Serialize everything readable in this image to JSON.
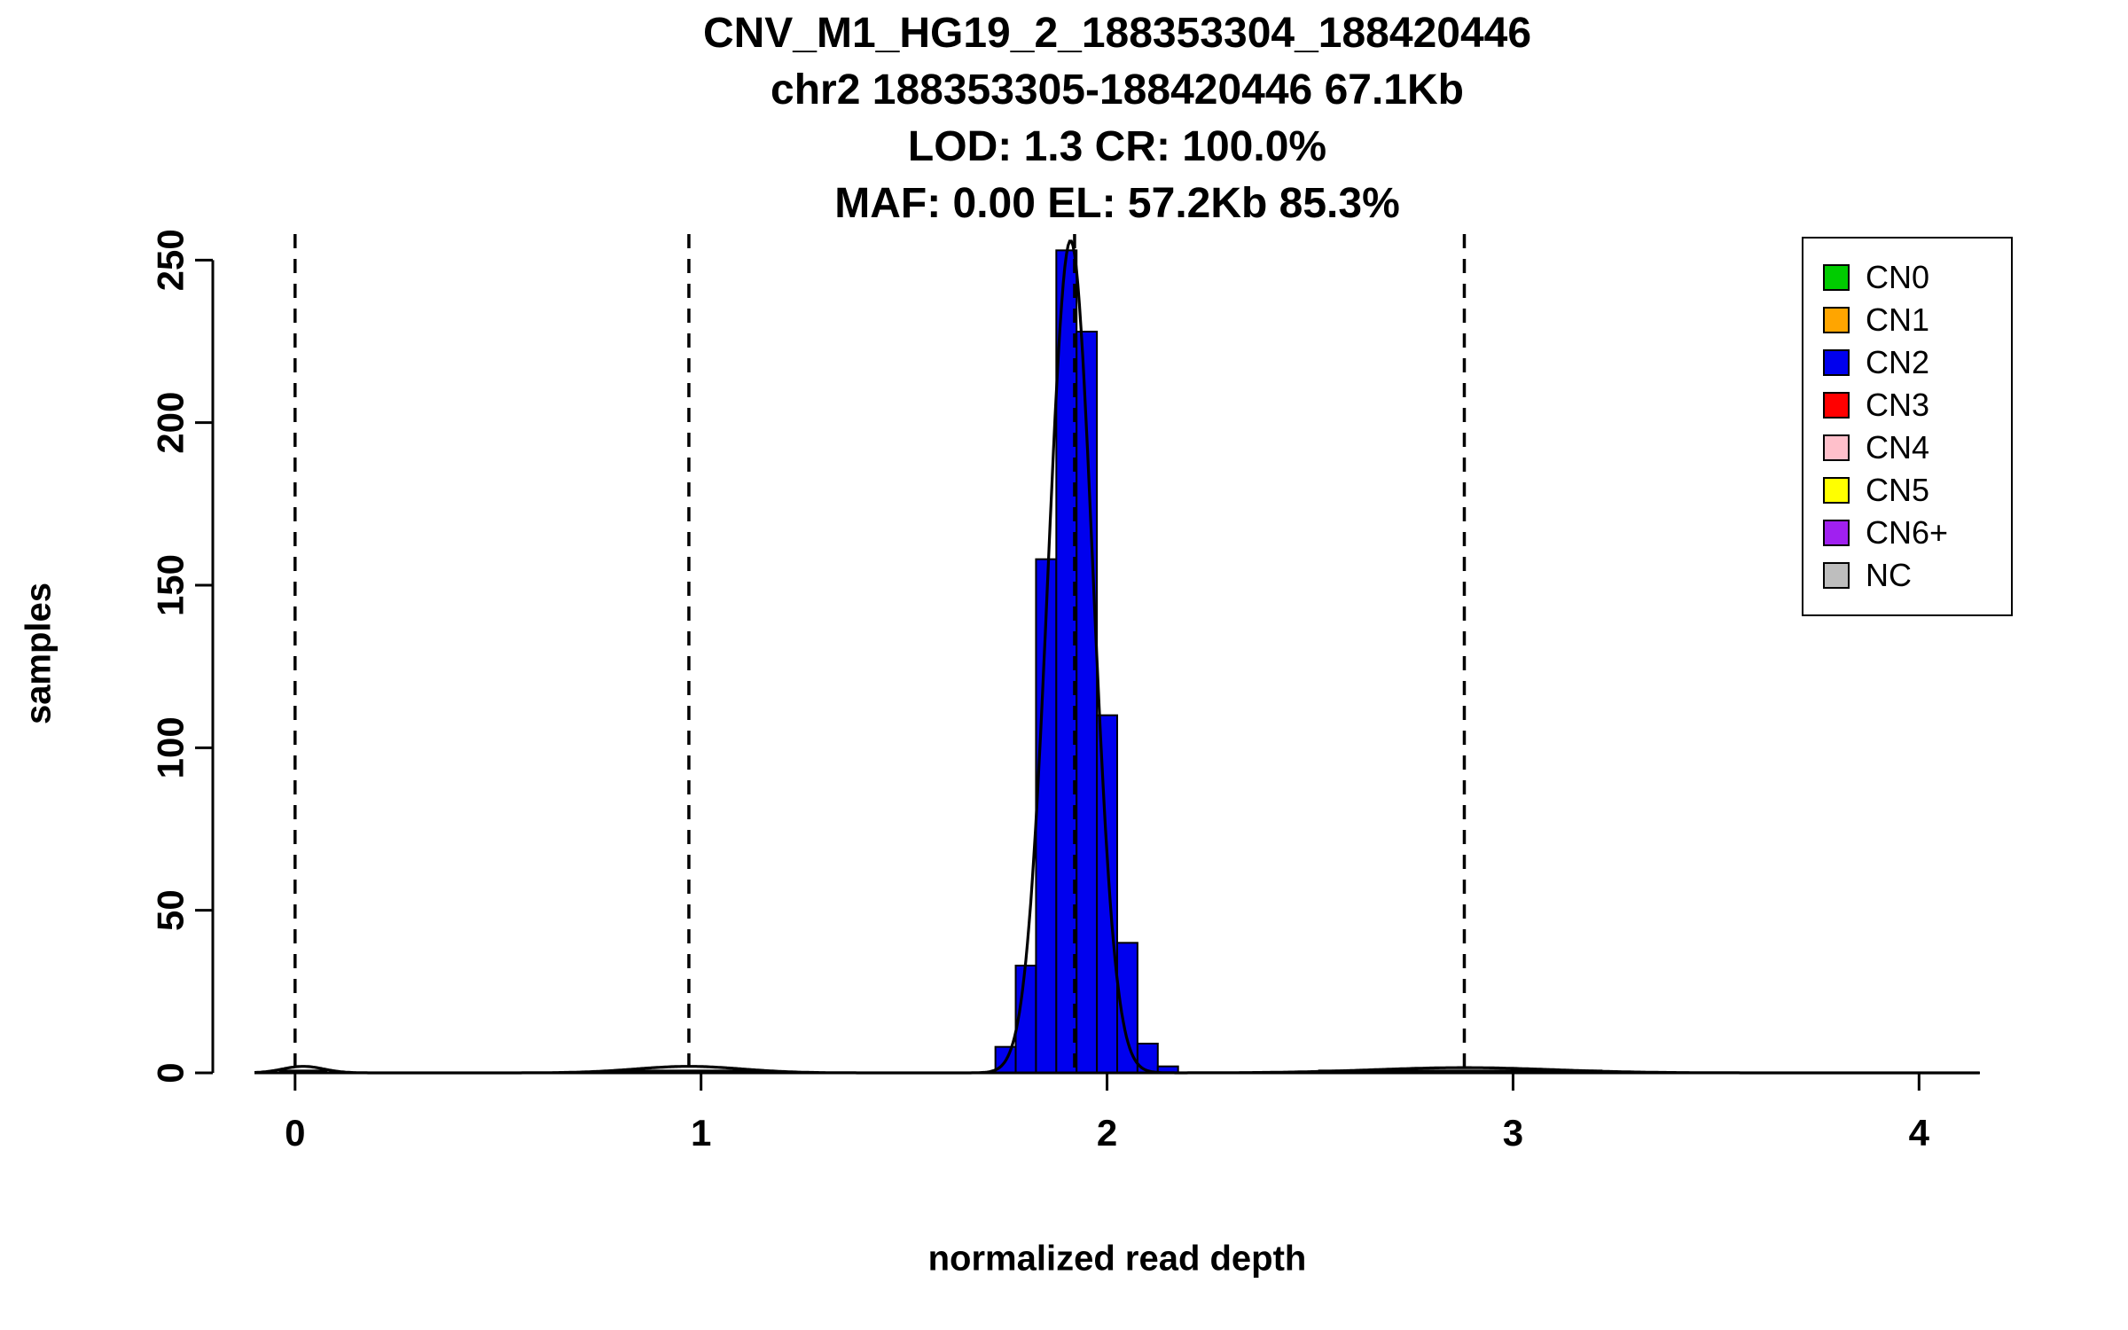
{
  "figure": {
    "background": "#FFFFFF"
  },
  "chart_data": {
    "type": "bar",
    "subtype": "histogram_with_density_curve",
    "title_lines": [
      "CNV_M1_HG19_2_188353304_188420446",
      "chr2 188353305-188420446 67.1Kb",
      "LOD: 1.3 CR: 100.0%",
      "MAF: 0.00 EL: 57.2Kb 85.3%"
    ],
    "xlabel": "normalized read depth",
    "ylabel": "samples",
    "xlim": [
      -0.1,
      4.15
    ],
    "ylim": [
      0,
      258
    ],
    "x_ticks": [
      0,
      1,
      2,
      3,
      4
    ],
    "y_ticks": [
      0,
      50,
      100,
      150,
      200,
      250
    ],
    "grid": false,
    "dashed_vlines_x": [
      0,
      0.97,
      1.92,
      2.88
    ],
    "histogram": {
      "bin_width": 0.05,
      "color": "#0000EE",
      "border_color": "#000000",
      "bins": [
        {
          "x0": 1.725,
          "count": 8
        },
        {
          "x0": 1.775,
          "count": 33
        },
        {
          "x0": 1.825,
          "count": 158
        },
        {
          "x0": 1.875,
          "count": 253
        },
        {
          "x0": 1.925,
          "count": 228
        },
        {
          "x0": 1.975,
          "count": 110
        },
        {
          "x0": 2.025,
          "count": 40
        },
        {
          "x0": 2.075,
          "count": 9
        },
        {
          "x0": 2.125,
          "count": 2
        }
      ]
    },
    "baseline_bumps": [
      {
        "x0": -0.04,
        "x1": 0.08,
        "count": 1
      },
      {
        "x0": 0.78,
        "x1": 1.16,
        "count": 1
      },
      {
        "x0": 2.52,
        "x1": 3.22,
        "count": 1
      }
    ],
    "density_curve": {
      "color": "#000000",
      "components": [
        {
          "mean": 1.91,
          "sd": 0.055,
          "peak": 256
        },
        {
          "mean": 0.02,
          "sd": 0.05,
          "peak": 2
        },
        {
          "mean": 0.97,
          "sd": 0.13,
          "peak": 2
        },
        {
          "mean": 2.88,
          "sd": 0.22,
          "peak": 1.6
        }
      ]
    },
    "legend": {
      "position": "top-right",
      "items": [
        {
          "label": "CN0",
          "color": "#00CC00"
        },
        {
          "label": "CN1",
          "color": "#FFA500"
        },
        {
          "label": "CN2",
          "color": "#0000EE"
        },
        {
          "label": "CN3",
          "color": "#FF0000"
        },
        {
          "label": "CN4",
          "color": "#FFC0CB"
        },
        {
          "label": "CN5",
          "color": "#FFFF00"
        },
        {
          "label": "CN6+",
          "color": "#A020F0"
        },
        {
          "label": "NC",
          "color": "#BEBEBE"
        }
      ]
    }
  }
}
